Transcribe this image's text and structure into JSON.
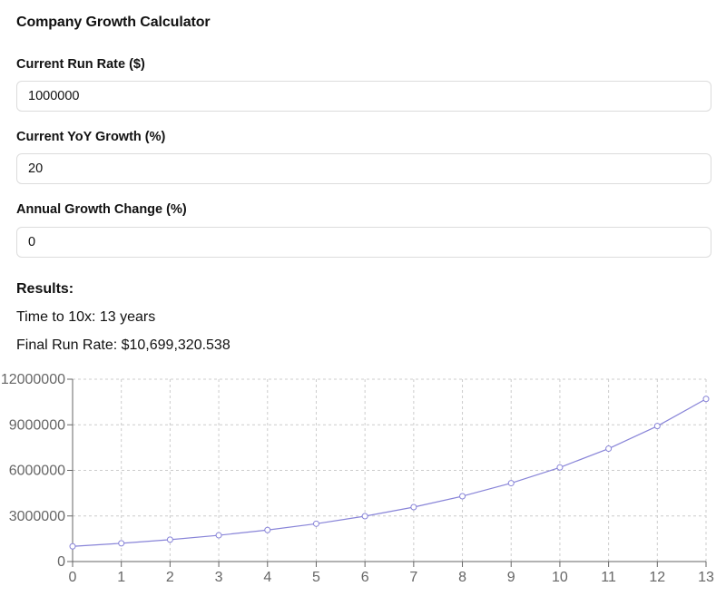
{
  "app": {
    "title": "Company Growth Calculator"
  },
  "form": {
    "run_rate": {
      "label": "Current Run Rate ($)",
      "value": "1000000"
    },
    "yoy_growth": {
      "label": "Current YoY Growth (%)",
      "value": "20"
    },
    "growth_change": {
      "label": "Annual Growth Change (%)",
      "value": "0"
    }
  },
  "results": {
    "heading": "Results:",
    "time_to_10x": "Time to 10x: 13 years",
    "final_run_rate": "Final Run Rate: $10,699,320.538"
  },
  "chart_data": {
    "type": "line",
    "title": "",
    "xlabel": "",
    "ylabel": "",
    "x": [
      0,
      1,
      2,
      3,
      4,
      5,
      6,
      7,
      8,
      9,
      10,
      11,
      12,
      13
    ],
    "series": [
      {
        "values": [
          1000000,
          1200000,
          1440000,
          1728000,
          2073600,
          2488320,
          2985984,
          3583181,
          4299817,
          5159780,
          6191736,
          7430084,
          8916100,
          10699321
        ]
      }
    ],
    "y_ticks": [
      0,
      3000000,
      6000000,
      9000000,
      12000000
    ],
    "y_tick_labels": [
      "0",
      "3000000",
      "6000000",
      "9000000",
      "12000000"
    ],
    "ylim": [
      0,
      12000000
    ],
    "xlim": [
      0,
      13
    ],
    "grid": true,
    "grid_style": "dashed",
    "line_color": "#8884d8",
    "grid_color": "#cccccc",
    "axis_color": "#666666"
  }
}
